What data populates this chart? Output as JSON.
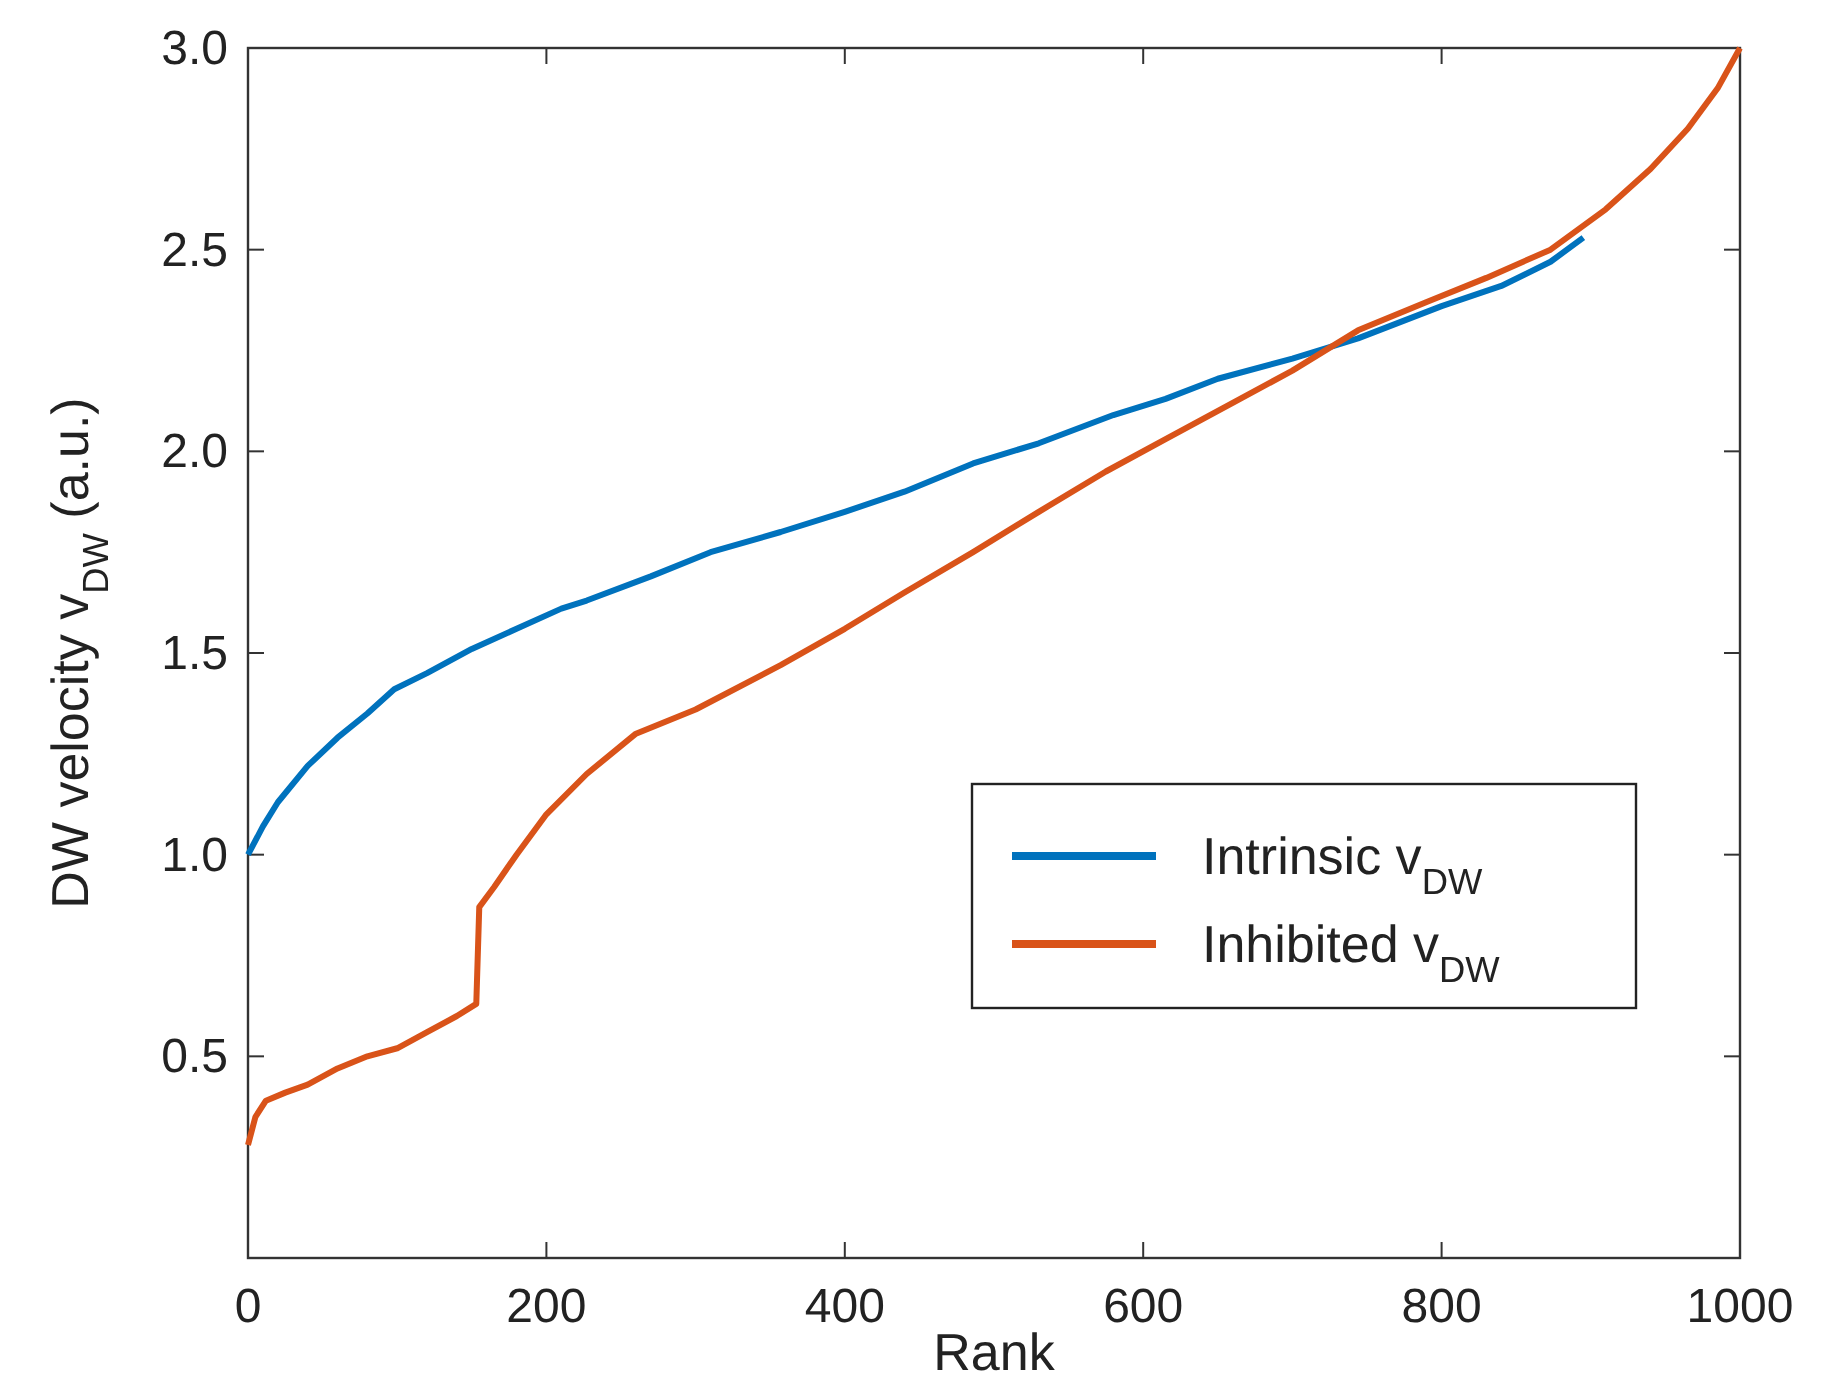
{
  "chart_data": {
    "type": "line",
    "xlabel": "Rank",
    "ylabel": "DW velocity v$_{DW}$ (a.u.)",
    "xlim": [
      0,
      1000
    ],
    "ylim": [
      0,
      3
    ],
    "xticks": [
      0,
      200,
      400,
      600,
      800,
      1000
    ],
    "yticks": [
      {
        "value": 0.5,
        "label": "0.5"
      },
      {
        "value": 1,
        "label": "1.0"
      },
      {
        "value": 1.5,
        "label": "1.5"
      },
      {
        "value": 2,
        "label": "2.0"
      },
      {
        "value": 2.5,
        "label": "2.5"
      },
      {
        "value": 3,
        "label": "3.0"
      }
    ],
    "grid": false,
    "legend": "right",
    "marker": "none",
    "line_style": "solid",
    "series": [
      {
        "name": "Intrinsic v$_{DW}$",
        "color": "#0072bd",
        "x": [
          0,
          10,
          20,
          40,
          60,
          80,
          98,
          120,
          150,
          180,
          210,
          227,
          270,
          310,
          357,
          400,
          440,
          486,
          530,
          580,
          615,
          650,
          700,
          744,
          800,
          840,
          873,
          895
        ],
        "values": [
          1.0,
          1.07,
          1.13,
          1.22,
          1.29,
          1.35,
          1.41,
          1.45,
          1.51,
          1.56,
          1.61,
          1.63,
          1.69,
          1.75,
          1.8,
          1.85,
          1.9,
          1.97,
          2.02,
          2.09,
          2.13,
          2.18,
          2.23,
          2.28,
          2.36,
          2.41,
          2.47,
          2.53
        ]
      },
      {
        "name": "Inhibited v$_{DW}$",
        "color": "#d95319",
        "x": [
          0,
          5,
          12,
          25,
          40,
          60,
          80,
          100,
          120,
          140,
          153,
          155,
          165,
          180,
          200,
          227,
          260,
          300,
          357,
          400,
          440,
          486,
          530,
          575,
          615,
          660,
          700,
          744,
          790,
          830,
          873,
          910,
          940,
          965,
          985,
          1000
        ],
        "values": [
          0.28,
          0.35,
          0.39,
          0.41,
          0.43,
          0.47,
          0.5,
          0.52,
          0.56,
          0.6,
          0.63,
          0.87,
          0.92,
          1.0,
          1.1,
          1.2,
          1.3,
          1.36,
          1.47,
          1.56,
          1.65,
          1.75,
          1.85,
          1.95,
          2.03,
          2.12,
          2.2,
          2.3,
          2.37,
          2.43,
          2.5,
          2.6,
          2.7,
          2.8,
          2.9,
          3.0
        ]
      }
    ]
  }
}
